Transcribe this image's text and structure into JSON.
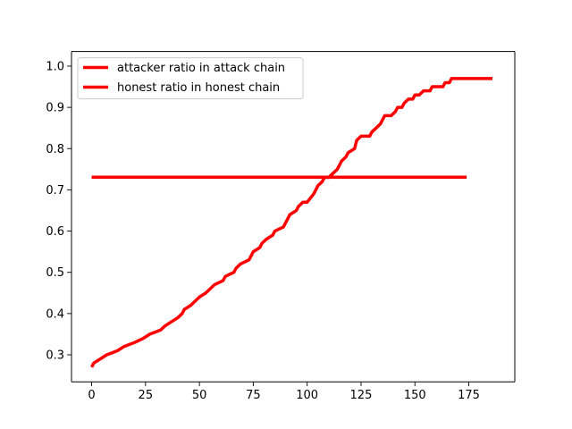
{
  "chart_data": {
    "type": "line",
    "title": "",
    "xlabel": "",
    "ylabel": "",
    "xlim": [
      -9.35,
      196.35
    ],
    "ylim": [
      0.2345,
      1.0355
    ],
    "x_ticks": [
      0,
      25,
      50,
      75,
      100,
      125,
      150,
      175
    ],
    "y_ticks": [
      0.3,
      0.4,
      0.5,
      0.6,
      0.7,
      0.8,
      0.9,
      1.0
    ],
    "x_tick_labels": [
      "0",
      "25",
      "50",
      "75",
      "100",
      "125",
      "150",
      "175"
    ],
    "y_tick_labels": [
      "0.3",
      "0.4",
      "0.5",
      "0.6",
      "0.7",
      "0.8",
      "0.9",
      "1.0"
    ],
    "grid": false,
    "legend_position": "top-left",
    "series": [
      {
        "name": "attacker ratio in attack chain",
        "color": "#ff0000",
        "points": [
          [
            0,
            0.27
          ],
          [
            1,
            0.28
          ],
          [
            4,
            0.29
          ],
          [
            7,
            0.3
          ],
          [
            12,
            0.31
          ],
          [
            15,
            0.32
          ],
          [
            20,
            0.33
          ],
          [
            24,
            0.34
          ],
          [
            27,
            0.35
          ],
          [
            32,
            0.36
          ],
          [
            34,
            0.37
          ],
          [
            37,
            0.38
          ],
          [
            40,
            0.39
          ],
          [
            42,
            0.4
          ],
          [
            43,
            0.41
          ],
          [
            46,
            0.42
          ],
          [
            48,
            0.43
          ],
          [
            50,
            0.44
          ],
          [
            53,
            0.45
          ],
          [
            55,
            0.46
          ],
          [
            57,
            0.47
          ],
          [
            61,
            0.48
          ],
          [
            62,
            0.49
          ],
          [
            66,
            0.5
          ],
          [
            67,
            0.51
          ],
          [
            69,
            0.52
          ],
          [
            73,
            0.53
          ],
          [
            74,
            0.54
          ],
          [
            75,
            0.55
          ],
          [
            78,
            0.56
          ],
          [
            79,
            0.57
          ],
          [
            81,
            0.58
          ],
          [
            84,
            0.59
          ],
          [
            85,
            0.6
          ],
          [
            89,
            0.61
          ],
          [
            90,
            0.62
          ],
          [
            92,
            0.64
          ],
          [
            95,
            0.65
          ],
          [
            96,
            0.66
          ],
          [
            98,
            0.67
          ],
          [
            100,
            0.67
          ],
          [
            103,
            0.69
          ],
          [
            105,
            0.71
          ],
          [
            107,
            0.72
          ],
          [
            108,
            0.73
          ],
          [
            110,
            0.73
          ],
          [
            112,
            0.74
          ],
          [
            114,
            0.75
          ],
          [
            116,
            0.77
          ],
          [
            118,
            0.78
          ],
          [
            119,
            0.79
          ],
          [
            122,
            0.8
          ],
          [
            123,
            0.82
          ],
          [
            125,
            0.83
          ],
          [
            129,
            0.83
          ],
          [
            130,
            0.84
          ],
          [
            134,
            0.86
          ],
          [
            136,
            0.88
          ],
          [
            139,
            0.88
          ],
          [
            141,
            0.89
          ],
          [
            142,
            0.9
          ],
          [
            144,
            0.9
          ],
          [
            145,
            0.91
          ],
          [
            147,
            0.92
          ],
          [
            149,
            0.92
          ],
          [
            150,
            0.93
          ],
          [
            152,
            0.93
          ],
          [
            154,
            0.94
          ],
          [
            157,
            0.94
          ],
          [
            158,
            0.95
          ],
          [
            163,
            0.95
          ],
          [
            164,
            0.96
          ],
          [
            166,
            0.96
          ],
          [
            167,
            0.97
          ],
          [
            186,
            0.97
          ]
        ]
      },
      {
        "name": "honest ratio in honest chain",
        "color": "#ff0000",
        "points": [
          [
            0,
            0.7307
          ],
          [
            174,
            0.7307
          ]
        ]
      }
    ]
  }
}
